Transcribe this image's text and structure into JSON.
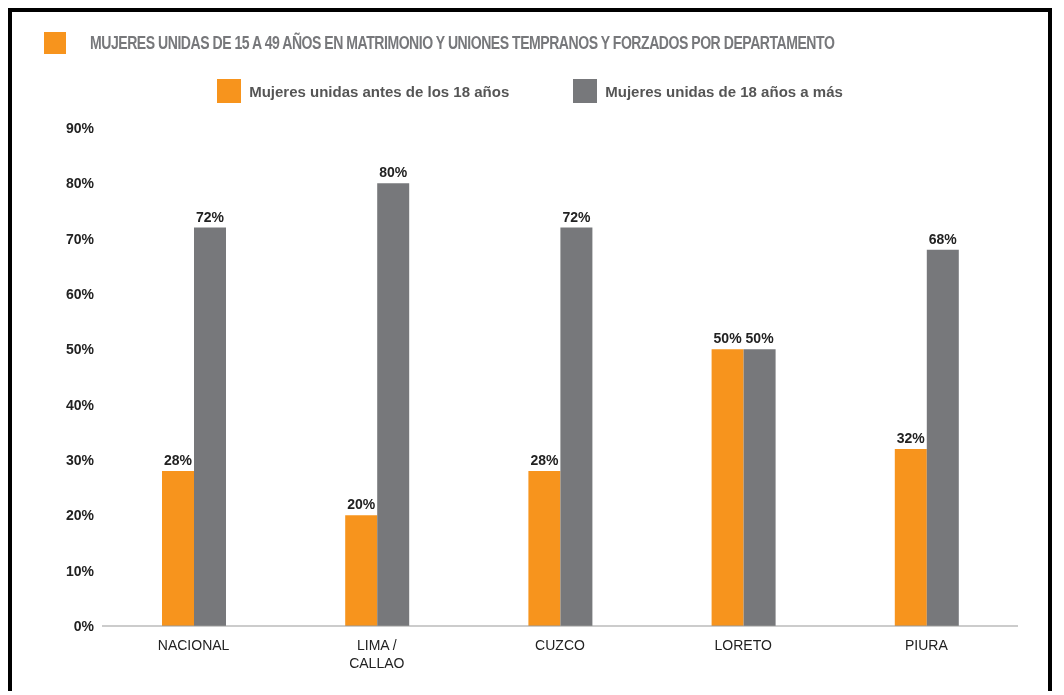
{
  "chart_data": {
    "type": "bar",
    "title": "MUJERES UNIDAS DE 15 A 49 AÑOS EN MATRIMONIO Y UNIONES TEMPRANOS Y FORZADOS POR DEPARTAMENTO",
    "categories": [
      "NACIONAL",
      "LIMA / CALLAO",
      "CUZCO",
      "LORETO",
      "PIURA"
    ],
    "series": [
      {
        "name": "Mujeres unidas antes de los 18 años",
        "color": "#f7941d",
        "values": [
          28,
          20,
          28,
          50,
          32
        ],
        "value_labels": [
          "28%",
          "20%",
          "28%",
          "50%",
          "32%"
        ]
      },
      {
        "name": "Mujeres unidas de 18 años a más",
        "color": "#77787b",
        "values": [
          72,
          80,
          72,
          50,
          68
        ],
        "value_labels": [
          "72%",
          "80%",
          "72%",
          "50%",
          "68%"
        ]
      }
    ],
    "ylim": [
      0,
      90
    ],
    "yticks": [
      {
        "value": 0,
        "label": "0%"
      },
      {
        "value": 10,
        "label": "10%"
      },
      {
        "value": 20,
        "label": "20%"
      },
      {
        "value": 30,
        "label": "30%"
      },
      {
        "value": 40,
        "label": "40%"
      },
      {
        "value": 50,
        "label": "50%"
      },
      {
        "value": 60,
        "label": "60%"
      },
      {
        "value": 70,
        "label": "70%"
      },
      {
        "value": 80,
        "label": "80%"
      },
      {
        "value": 90,
        "label": "90%"
      }
    ],
    "legend": "top"
  }
}
